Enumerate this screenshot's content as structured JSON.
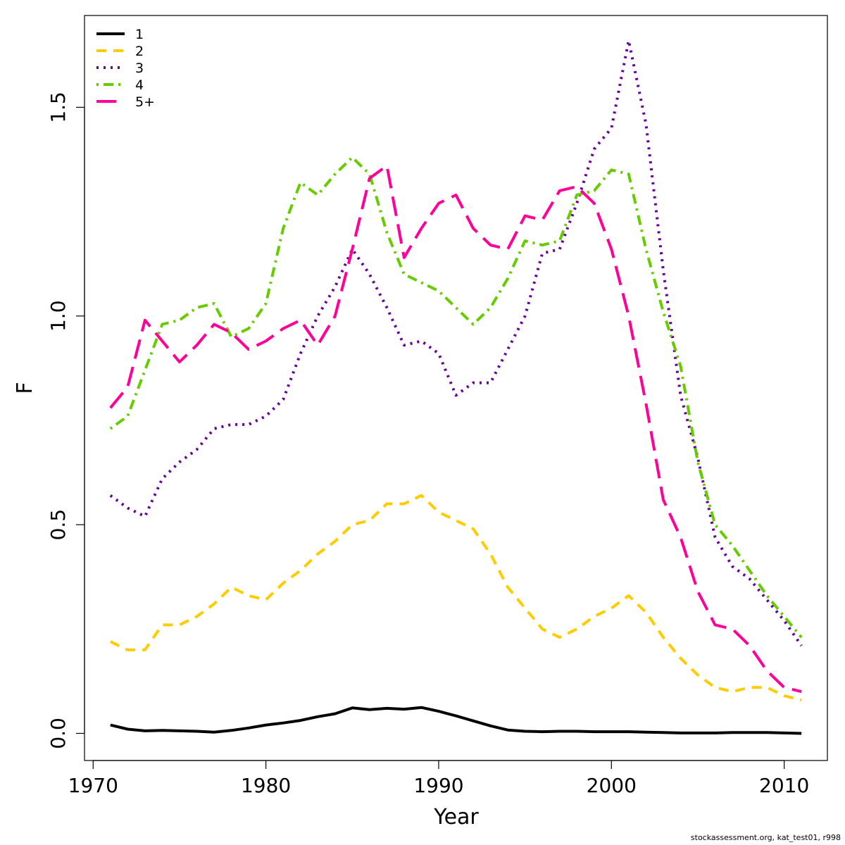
{
  "chart_data": {
    "type": "line",
    "xlabel": "Year",
    "ylabel": "F",
    "xlim": [
      1969.5,
      2012.5
    ],
    "ylim": [
      -0.065,
      1.72
    ],
    "xticks": [
      1970,
      1980,
      1990,
      2000,
      2010
    ],
    "yticks": [
      0.0,
      0.5,
      1.0,
      1.5
    ],
    "ytick_labels": [
      "0.0",
      "0.5",
      "1.0",
      "1.5"
    ],
    "legend_position": "top-left",
    "x": [
      1971,
      1972,
      1973,
      1974,
      1975,
      1976,
      1977,
      1978,
      1979,
      1980,
      1981,
      1982,
      1983,
      1984,
      1985,
      1986,
      1987,
      1988,
      1989,
      1990,
      1991,
      1992,
      1993,
      1994,
      1995,
      1996,
      1997,
      1998,
      1999,
      2000,
      2001,
      2002,
      2003,
      2004,
      2005,
      2006,
      2007,
      2008,
      2009,
      2010,
      2011
    ],
    "series": [
      {
        "name": "1",
        "color": "#000000",
        "dash": "solid",
        "values": [
          0.02,
          0.01,
          0.006,
          0.007,
          0.006,
          0.005,
          0.003,
          0.007,
          0.013,
          0.02,
          0.025,
          0.031,
          0.04,
          0.047,
          0.061,
          0.057,
          0.06,
          0.058,
          0.062,
          0.053,
          0.042,
          0.03,
          0.018,
          0.008,
          0.005,
          0.004,
          0.005,
          0.005,
          0.004,
          0.004,
          0.004,
          0.003,
          0.002,
          0.001,
          0.001,
          0.001,
          0.002,
          0.002,
          0.002,
          0.001,
          0.0
        ]
      },
      {
        "name": "2",
        "color": "#ffcc00",
        "dash": "dashed",
        "values": [
          0.22,
          0.2,
          0.2,
          0.26,
          0.26,
          0.28,
          0.31,
          0.35,
          0.33,
          0.32,
          0.36,
          0.39,
          0.43,
          0.46,
          0.5,
          0.51,
          0.55,
          0.55,
          0.57,
          0.53,
          0.51,
          0.49,
          0.43,
          0.35,
          0.3,
          0.25,
          0.23,
          0.25,
          0.28,
          0.3,
          0.33,
          0.29,
          0.23,
          0.18,
          0.14,
          0.11,
          0.1,
          0.11,
          0.11,
          0.09,
          0.08
        ]
      },
      {
        "name": "3",
        "color": "#660099",
        "dash": "dotted",
        "values": [
          0.57,
          0.54,
          0.52,
          0.61,
          0.65,
          0.68,
          0.73,
          0.74,
          0.74,
          0.76,
          0.8,
          0.91,
          1.0,
          1.07,
          1.16,
          1.1,
          1.02,
          0.93,
          0.94,
          0.91,
          0.81,
          0.84,
          0.84,
          0.92,
          1.0,
          1.15,
          1.16,
          1.27,
          1.4,
          1.45,
          1.66,
          1.46,
          1.11,
          0.81,
          0.66,
          0.47,
          0.4,
          0.37,
          0.32,
          0.27,
          0.21
        ]
      },
      {
        "name": "4",
        "color": "#66cc00",
        "dash": "dotdash",
        "values": [
          0.73,
          0.76,
          0.87,
          0.98,
          0.99,
          1.02,
          1.03,
          0.95,
          0.97,
          1.03,
          1.21,
          1.32,
          1.29,
          1.34,
          1.38,
          1.34,
          1.2,
          1.1,
          1.08,
          1.06,
          1.02,
          0.98,
          1.02,
          1.09,
          1.18,
          1.17,
          1.18,
          1.29,
          1.3,
          1.35,
          1.34,
          1.16,
          1.01,
          0.88,
          0.65,
          0.5,
          0.45,
          0.39,
          0.33,
          0.28,
          0.23
        ]
      },
      {
        "name": "5+",
        "color": "#ff0099",
        "dash": "longdash",
        "values": [
          0.78,
          0.83,
          0.99,
          0.94,
          0.89,
          0.93,
          0.98,
          0.96,
          0.92,
          0.94,
          0.97,
          0.99,
          0.93,
          1.0,
          1.16,
          1.33,
          1.36,
          1.14,
          1.21,
          1.27,
          1.29,
          1.21,
          1.17,
          1.16,
          1.24,
          1.23,
          1.3,
          1.31,
          1.27,
          1.16,
          1.0,
          0.79,
          0.56,
          0.47,
          0.34,
          0.26,
          0.25,
          0.21,
          0.15,
          0.11,
          0.1
        ]
      }
    ]
  },
  "credit": "stockassessment.org, kat_test01, r998"
}
